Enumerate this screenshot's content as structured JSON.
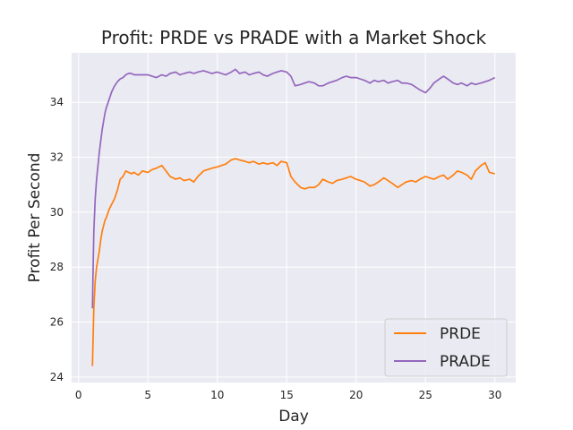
{
  "chart_data": {
    "type": "line",
    "title": "Profit: PRDE vs PRADE with a Market Shock",
    "xlabel": "Day",
    "ylabel": "Profit Per Second",
    "xlim": [
      -0.5,
      31.5
    ],
    "ylim": [
      23.8,
      35.8
    ],
    "xticks": [
      0,
      5,
      10,
      15,
      20,
      25,
      30
    ],
    "yticks": [
      24,
      26,
      28,
      30,
      32,
      34
    ],
    "grid": true,
    "legend_position": "bottom-right",
    "series": [
      {
        "name": "PRDE",
        "color": "#ff7f0e",
        "x": [
          1.0,
          1.05,
          1.1,
          1.2,
          1.3,
          1.4,
          1.5,
          1.6,
          1.7,
          1.8,
          1.9,
          2.0,
          2.2,
          2.4,
          2.6,
          2.8,
          3.0,
          3.2,
          3.4,
          3.6,
          3.8,
          4.0,
          4.3,
          4.6,
          5.0,
          5.3,
          5.6,
          6.0,
          6.3,
          6.6,
          7.0,
          7.3,
          7.6,
          8.0,
          8.3,
          8.6,
          9.0,
          9.3,
          9.6,
          10.0,
          10.3,
          10.6,
          11.0,
          11.3,
          11.6,
          12.0,
          12.3,
          12.6,
          13.0,
          13.3,
          13.6,
          14.0,
          14.3,
          14.6,
          15.0,
          15.3,
          15.6,
          16.0,
          16.3,
          16.6,
          17.0,
          17.3,
          17.6,
          18.0,
          18.3,
          18.6,
          19.0,
          19.3,
          19.6,
          20.0,
          20.3,
          20.6,
          21.0,
          21.3,
          21.6,
          22.0,
          22.3,
          22.6,
          23.0,
          23.3,
          23.6,
          24.0,
          24.3,
          24.6,
          25.0,
          25.3,
          25.6,
          26.0,
          26.3,
          26.6,
          27.0,
          27.3,
          27.6,
          28.0,
          28.3,
          28.6,
          29.0,
          29.3,
          29.6,
          30.0
        ],
        "values": [
          24.4,
          25.5,
          26.5,
          27.5,
          28.0,
          28.3,
          28.6,
          29.0,
          29.3,
          29.5,
          29.7,
          29.8,
          30.1,
          30.3,
          30.5,
          30.8,
          31.2,
          31.3,
          31.5,
          31.45,
          31.4,
          31.45,
          31.35,
          31.5,
          31.45,
          31.55,
          31.6,
          31.7,
          31.5,
          31.3,
          31.2,
          31.25,
          31.15,
          31.2,
          31.1,
          31.3,
          31.5,
          31.55,
          31.6,
          31.65,
          31.7,
          31.75,
          31.9,
          31.95,
          31.9,
          31.85,
          31.8,
          31.85,
          31.75,
          31.8,
          31.75,
          31.8,
          31.7,
          31.85,
          31.8,
          31.3,
          31.1,
          30.9,
          30.85,
          30.9,
          30.9,
          31.0,
          31.2,
          31.1,
          31.05,
          31.15,
          31.2,
          31.25,
          31.3,
          31.2,
          31.15,
          31.1,
          30.95,
          31.0,
          31.1,
          31.25,
          31.15,
          31.05,
          30.9,
          31.0,
          31.1,
          31.15,
          31.1,
          31.2,
          31.3,
          31.25,
          31.2,
          31.3,
          31.35,
          31.2,
          31.35,
          31.5,
          31.45,
          31.35,
          31.2,
          31.5,
          31.7,
          31.8,
          31.45,
          31.4
        ]
      },
      {
        "name": "PRADE",
        "color": "#9467bd",
        "x": [
          1.0,
          1.05,
          1.1,
          1.2,
          1.3,
          1.4,
          1.5,
          1.6,
          1.7,
          1.8,
          1.9,
          2.0,
          2.2,
          2.4,
          2.6,
          2.8,
          3.0,
          3.2,
          3.4,
          3.6,
          3.8,
          4.0,
          4.3,
          4.6,
          5.0,
          5.3,
          5.6,
          6.0,
          6.3,
          6.6,
          7.0,
          7.3,
          7.6,
          8.0,
          8.3,
          8.6,
          9.0,
          9.3,
          9.6,
          10.0,
          10.3,
          10.6,
          11.0,
          11.3,
          11.6,
          12.0,
          12.3,
          12.6,
          13.0,
          13.3,
          13.6,
          14.0,
          14.3,
          14.6,
          15.0,
          15.3,
          15.6,
          16.0,
          16.3,
          16.6,
          17.0,
          17.3,
          17.6,
          18.0,
          18.3,
          18.6,
          19.0,
          19.3,
          19.6,
          20.0,
          20.3,
          20.6,
          21.0,
          21.3,
          21.6,
          22.0,
          22.3,
          22.6,
          23.0,
          23.3,
          23.6,
          24.0,
          24.3,
          24.6,
          25.0,
          25.3,
          25.6,
          26.0,
          26.3,
          26.6,
          27.0,
          27.3,
          27.6,
          28.0,
          28.3,
          28.6,
          29.0,
          29.3,
          29.6,
          30.0
        ],
        "values": [
          26.5,
          28.0,
          29.3,
          30.5,
          31.2,
          31.7,
          32.2,
          32.6,
          33.0,
          33.3,
          33.6,
          33.8,
          34.1,
          34.4,
          34.6,
          34.75,
          34.85,
          34.9,
          35.0,
          35.05,
          35.05,
          35.0,
          35.0,
          35.0,
          35.0,
          34.95,
          34.9,
          35.0,
          34.95,
          35.05,
          35.1,
          35.0,
          35.05,
          35.1,
          35.05,
          35.1,
          35.15,
          35.1,
          35.05,
          35.1,
          35.05,
          35.0,
          35.1,
          35.2,
          35.05,
          35.1,
          35.0,
          35.05,
          35.1,
          35.0,
          34.95,
          35.05,
          35.1,
          35.15,
          35.1,
          34.95,
          34.6,
          34.65,
          34.7,
          34.75,
          34.7,
          34.6,
          34.6,
          34.7,
          34.75,
          34.8,
          34.9,
          34.95,
          34.9,
          34.9,
          34.85,
          34.8,
          34.7,
          34.8,
          34.75,
          34.8,
          34.7,
          34.75,
          34.8,
          34.7,
          34.7,
          34.65,
          34.55,
          34.45,
          34.35,
          34.5,
          34.7,
          34.85,
          34.95,
          34.85,
          34.7,
          34.65,
          34.7,
          34.6,
          34.7,
          34.65,
          34.7,
          34.75,
          34.8,
          34.9
        ]
      }
    ]
  }
}
